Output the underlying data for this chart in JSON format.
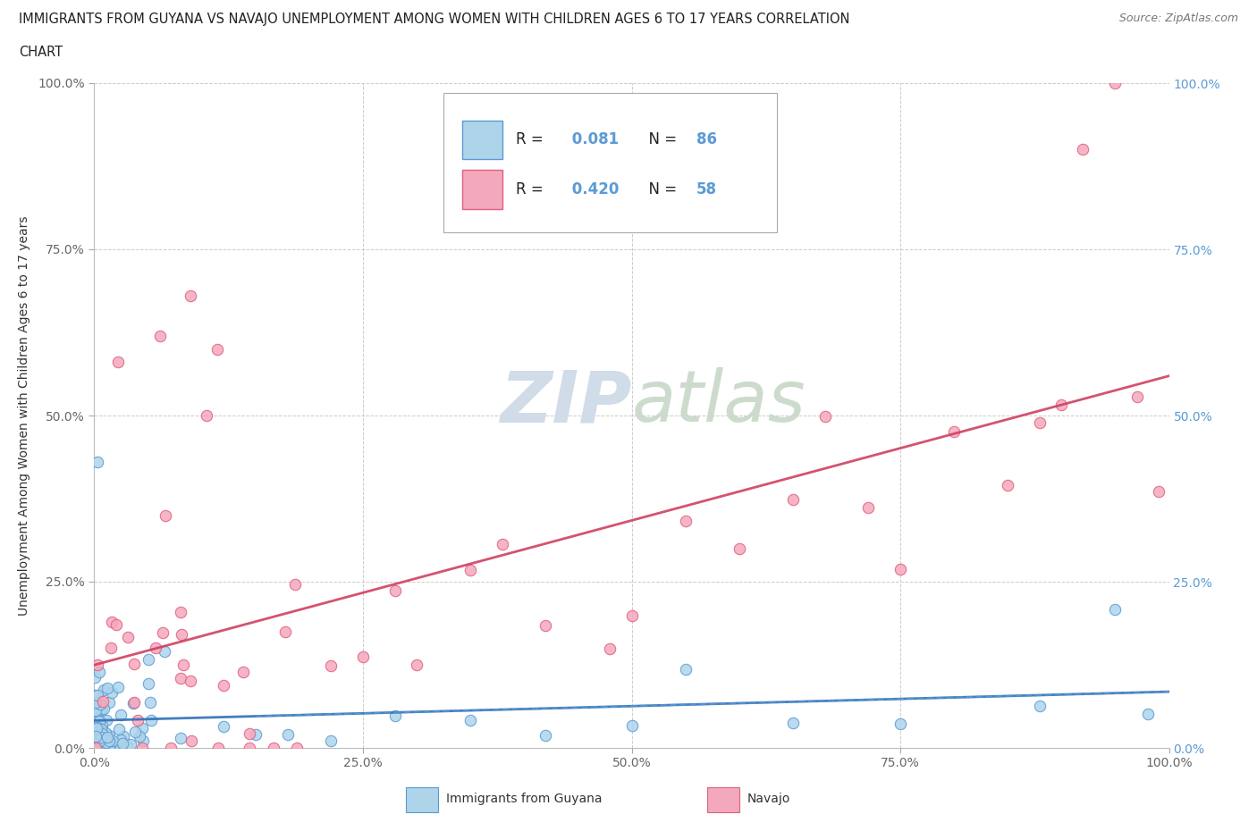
{
  "title_line1": "IMMIGRANTS FROM GUYANA VS NAVAJO UNEMPLOYMENT AMONG WOMEN WITH CHILDREN AGES 6 TO 17 YEARS CORRELATION",
  "title_line2": "CHART",
  "source": "Source: ZipAtlas.com",
  "ylabel": "Unemployment Among Women with Children Ages 6 to 17 years",
  "xlim": [
    0.0,
    1.0
  ],
  "ylim": [
    0.0,
    1.0
  ],
  "xticks": [
    0.0,
    0.25,
    0.5,
    0.75,
    1.0
  ],
  "yticks": [
    0.0,
    0.25,
    0.5,
    0.75,
    1.0
  ],
  "xtick_labels": [
    "0.0%",
    "25.0%",
    "50.0%",
    "75.0%",
    "100.0%"
  ],
  "ytick_labels": [
    "0.0%",
    "25.0%",
    "50.0%",
    "75.0%",
    "100.0%"
  ],
  "right_ytick_labels": [
    "0.0%",
    "25.0%",
    "50.0%",
    "75.0%",
    "100.0%"
  ],
  "blue_R": 0.081,
  "blue_N": 86,
  "pink_R": 0.42,
  "pink_N": 58,
  "blue_color": "#AED4EA",
  "pink_color": "#F4A8BC",
  "blue_edge_color": "#5B9BD5",
  "pink_edge_color": "#E06080",
  "blue_line_color": "#3070B8",
  "pink_line_color": "#D04060",
  "watermark_color": "#D0DCE8",
  "legend_label_blue": "Immigrants from Guyana",
  "legend_label_pink": "Navajo",
  "background_color": "#FFFFFF",
  "grid_color": "#CCCCCC"
}
